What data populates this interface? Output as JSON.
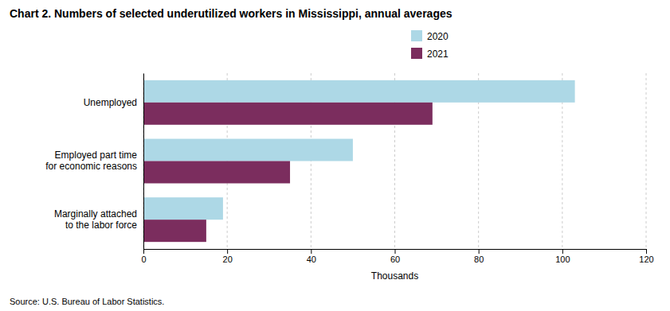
{
  "chart_data": {
    "type": "bar",
    "orientation": "horizontal",
    "title": "Chart 2. Numbers of selected underutilized workers in Mississippi, annual averages",
    "categories": [
      "Unemployed",
      "Employed part time\nfor economic reasons",
      "Marginally attached\nto the labor force"
    ],
    "series": [
      {
        "name": "2020",
        "color": "#ADD8E6",
        "values": [
          103,
          50,
          19
        ]
      },
      {
        "name": "2021",
        "color": "#7B2D5E",
        "values": [
          69,
          35,
          15
        ]
      }
    ],
    "xlim": [
      0,
      120
    ],
    "xticks": [
      0,
      20,
      40,
      60,
      80,
      100,
      120
    ],
    "xlabel": "Thousands",
    "source": "Source: U.S. Bureau of Labor Statistics.",
    "grid": true,
    "legend": "top"
  }
}
